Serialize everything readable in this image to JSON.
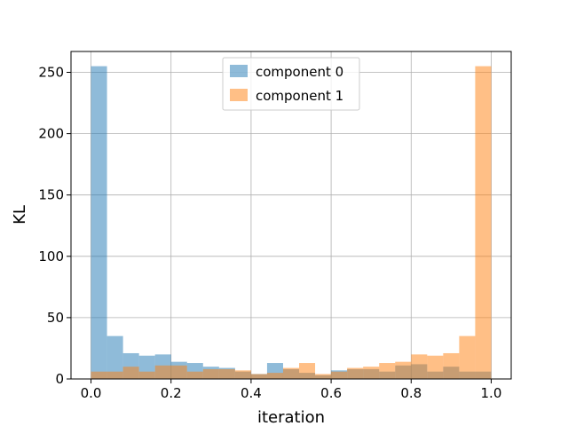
{
  "chart_data": {
    "type": "histogram",
    "title": "",
    "xlabel": "iteration",
    "ylabel": "KL",
    "xlim": [
      -0.05,
      1.05
    ],
    "ylim": [
      0,
      267
    ],
    "grid": true,
    "legend_position": "top-center",
    "bin_edges": [
      0.0,
      0.04,
      0.08,
      0.12,
      0.16,
      0.2,
      0.24,
      0.28,
      0.32,
      0.36,
      0.4,
      0.44,
      0.48,
      0.52,
      0.56,
      0.6,
      0.64,
      0.68,
      0.72,
      0.76,
      0.8,
      0.84,
      0.88,
      0.92,
      0.96,
      1.0
    ],
    "xticks": [
      "0.0",
      "0.2",
      "0.4",
      "0.6",
      "0.8",
      "1.0"
    ],
    "xtick_values": [
      0.0,
      0.2,
      0.4,
      0.6,
      0.8,
      1.0
    ],
    "yticks": [
      "0",
      "50",
      "100",
      "150",
      "200",
      "250"
    ],
    "ytick_values": [
      0,
      50,
      100,
      150,
      200,
      250
    ],
    "series": [
      {
        "name": "component 0",
        "color": "#1f77b4",
        "alpha": 0.5,
        "values": [
          255,
          35,
          21,
          19,
          20,
          14,
          13,
          10,
          9,
          6,
          4,
          13,
          8,
          5,
          3,
          7,
          8,
          8,
          6,
          11,
          12,
          6,
          10,
          6,
          6
        ]
      },
      {
        "name": "component 1",
        "color": "#ff7f0e",
        "alpha": 0.5,
        "values": [
          6,
          6,
          10,
          6,
          11,
          11,
          6,
          8,
          8,
          7,
          4,
          5,
          9,
          13,
          4,
          6,
          9,
          10,
          13,
          14,
          20,
          19,
          21,
          35,
          255
        ]
      }
    ]
  }
}
